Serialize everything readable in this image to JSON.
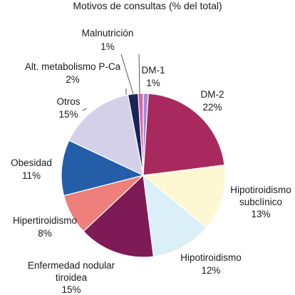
{
  "chart_data": {
    "type": "pie",
    "title": "Motivos de consultas (% del total)",
    "slices": [
      {
        "label": "DM-1",
        "value": 1,
        "display": "1%",
        "color": "#9b8fd6"
      },
      {
        "label": "DM-2",
        "value": 22,
        "display": "22%",
        "color": "#a8295e"
      },
      {
        "label": "Hipotiroidismo subclínico",
        "value": 13,
        "display": "13%",
        "color": "#fdf8d2"
      },
      {
        "label": "Hipotiroidismo",
        "value": 12,
        "display": "12%",
        "color": "#dbeff8"
      },
      {
        "label": "Enfermedad nodular tiroidea",
        "value": 15,
        "display": "15%",
        "color": "#7e1a55"
      },
      {
        "label": "Hipertiroidismo",
        "value": 8,
        "display": "8%",
        "color": "#ef7f7b"
      },
      {
        "label": "Obesidad",
        "value": 11,
        "display": "11%",
        "color": "#245ea8"
      },
      {
        "label": "Otros",
        "value": 15,
        "display": "15%",
        "color": "#d4d0ea"
      },
      {
        "label": "Alt. metabolismo P-Ca",
        "value": 2,
        "display": "2%",
        "color": "#1a2457"
      },
      {
        "label": "Malnutrición",
        "value": 1,
        "display": "1%",
        "color": "#d76aa4"
      }
    ],
    "start_angle_deg": 0,
    "direction": "clockwise"
  }
}
